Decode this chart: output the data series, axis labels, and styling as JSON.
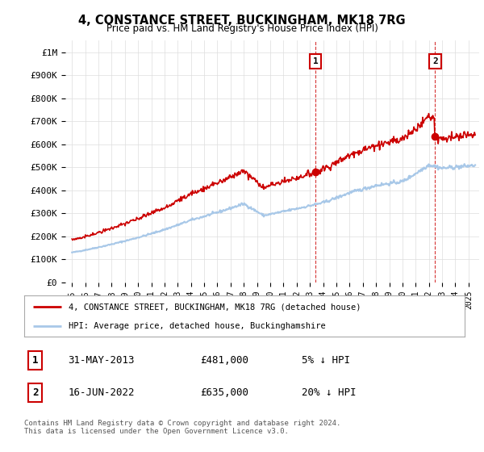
{
  "title": "4, CONSTANCE STREET, BUCKINGHAM, MK18 7RG",
  "subtitle": "Price paid vs. HM Land Registry's House Price Index (HPI)",
  "ylim": [
    0,
    1050000
  ],
  "yticks": [
    0,
    100000,
    200000,
    300000,
    400000,
    500000,
    600000,
    700000,
    800000,
    900000,
    1000000
  ],
  "ytick_labels": [
    "£0",
    "£100K",
    "£200K",
    "£300K",
    "£400K",
    "£500K",
    "£600K",
    "£700K",
    "£800K",
    "£900K",
    "£1M"
  ],
  "hpi_color": "#a8c8e8",
  "price_color": "#cc0000",
  "sale1_x": 2013.42,
  "sale1_y": 481000,
  "sale1_label": "1",
  "sale1_date": "31-MAY-2013",
  "sale1_price": "£481,000",
  "sale1_hpi": "5% ↓ HPI",
  "sale2_x": 2022.46,
  "sale2_y": 635000,
  "sale2_label": "2",
  "sale2_date": "16-JUN-2022",
  "sale2_price": "£635,000",
  "sale2_hpi": "20% ↓ HPI",
  "legend_line1": "4, CONSTANCE STREET, BUCKINGHAM, MK18 7RG (detached house)",
  "legend_line2": "HPI: Average price, detached house, Buckinghamshire",
  "footer": "Contains HM Land Registry data © Crown copyright and database right 2024.\nThis data is licensed under the Open Government Licence v3.0.",
  "bg_color": "#ffffff",
  "grid_color": "#dddddd",
  "xtick_years": [
    1995,
    1996,
    1997,
    1998,
    1999,
    2000,
    2001,
    2002,
    2003,
    2004,
    2005,
    2006,
    2007,
    2008,
    2009,
    2010,
    2011,
    2012,
    2013,
    2014,
    2015,
    2016,
    2017,
    2018,
    2019,
    2020,
    2021,
    2022,
    2023,
    2024,
    2025
  ]
}
